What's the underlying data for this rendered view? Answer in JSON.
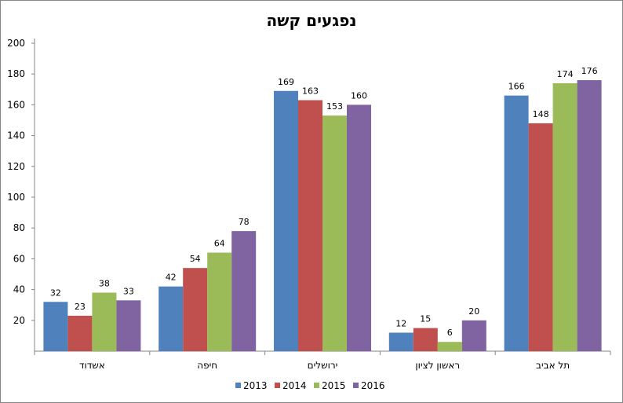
{
  "chart_data": {
    "type": "bar",
    "title": "נפגעים קשה",
    "xlabel": "",
    "ylabel": "",
    "ylim": [
      0,
      200
    ],
    "yticks": [
      20,
      40,
      60,
      80,
      100,
      120,
      140,
      160,
      180,
      200
    ],
    "grid": false,
    "legend_position": "bottom",
    "categories": [
      "אשדוד",
      "חיפה",
      "ירושלים",
      "ראשון לציון",
      "תל אביב"
    ],
    "series": [
      {
        "name": "2013",
        "color": "#4F81BD",
        "values": [
          32,
          42,
          169,
          12,
          166
        ]
      },
      {
        "name": "2014",
        "color": "#C0504D",
        "values": [
          23,
          54,
          163,
          15,
          148
        ]
      },
      {
        "name": "2015",
        "color": "#9BBB59",
        "values": [
          38,
          64,
          153,
          6,
          174
        ]
      },
      {
        "name": "2016",
        "color": "#8064A2",
        "values": [
          33,
          78,
          160,
          20,
          176
        ]
      }
    ]
  }
}
